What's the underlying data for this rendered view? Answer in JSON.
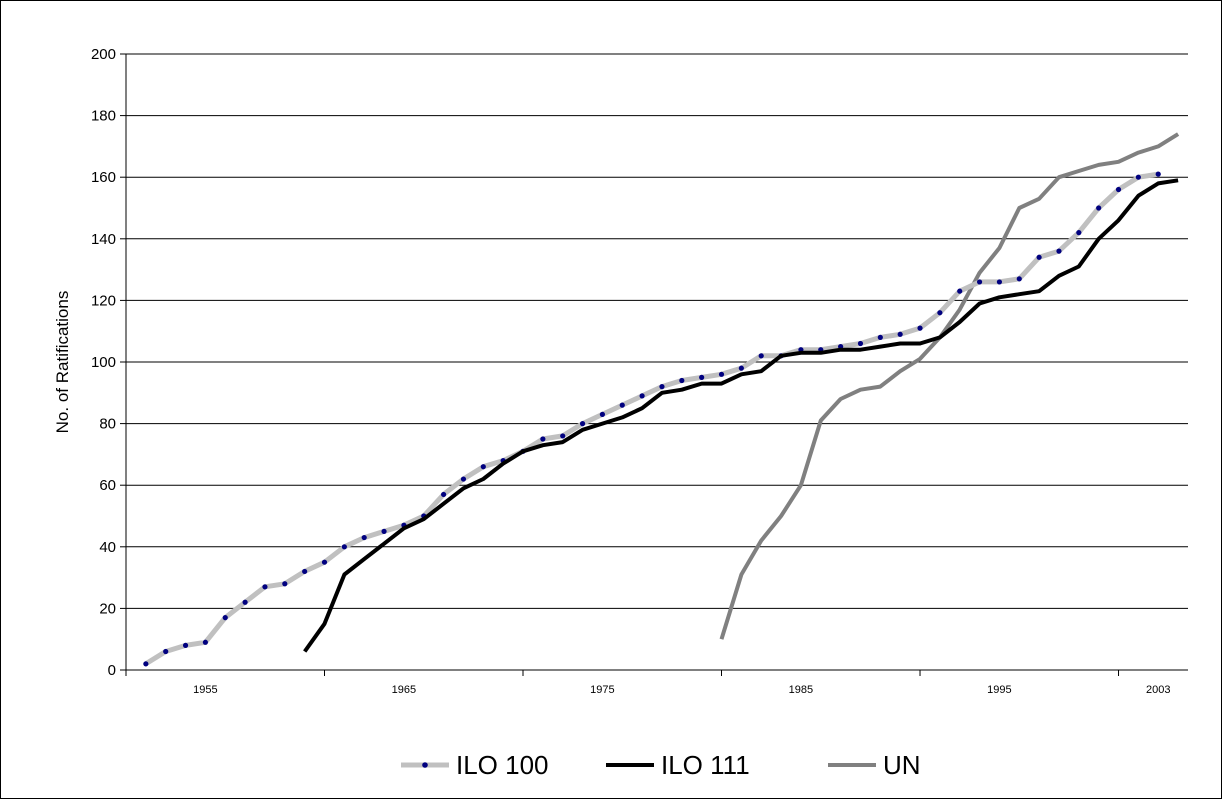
{
  "chart_data": {
    "type": "line",
    "title": "",
    "xlabel": "",
    "ylabel": "No. of Ratifications",
    "xlim": [
      1951,
      2004.5
    ],
    "ylim": [
      0,
      200
    ],
    "yticks": [
      0,
      20,
      40,
      60,
      80,
      100,
      120,
      140,
      160,
      180,
      200
    ],
    "xtick_labels": [
      "1955",
      "1965",
      "1975",
      "1985",
      "1995",
      "2003"
    ],
    "xtick_label_positions": [
      1955,
      1965,
      1975,
      1985,
      1995,
      2003
    ],
    "xtick_marks": [
      1951,
      1961,
      1971,
      1981,
      1991,
      2001
    ],
    "grid": "horizontal",
    "legend_position": "bottom",
    "series": [
      {
        "name": "ILO 100",
        "color": "#c0c0c0",
        "marker_color": "#000080",
        "markers": true,
        "x": [
          1952,
          1953,
          1954,
          1955,
          1956,
          1957,
          1958,
          1959,
          1960,
          1961,
          1962,
          1963,
          1964,
          1965,
          1966,
          1967,
          1968,
          1969,
          1970,
          1971,
          1972,
          1973,
          1974,
          1975,
          1976,
          1977,
          1978,
          1979,
          1980,
          1981,
          1982,
          1983,
          1984,
          1985,
          1986,
          1987,
          1988,
          1989,
          1990,
          1991,
          1992,
          1993,
          1994,
          1995,
          1996,
          1997,
          1998,
          1999,
          2000,
          2001,
          2002,
          2003
        ],
        "values": [
          2,
          6,
          8,
          9,
          17,
          22,
          27,
          28,
          32,
          35,
          40,
          43,
          45,
          47,
          50,
          57,
          62,
          66,
          68,
          71,
          75,
          76,
          80,
          83,
          86,
          89,
          92,
          94,
          95,
          96,
          98,
          102,
          102,
          104,
          104,
          105,
          106,
          108,
          109,
          111,
          116,
          123,
          126,
          126,
          127,
          134,
          136,
          142,
          150,
          156,
          160,
          161
        ]
      },
      {
        "name": "ILO 111",
        "color": "#000000",
        "markers": false,
        "x": [
          1960,
          1961,
          1962,
          1963,
          1964,
          1965,
          1966,
          1967,
          1968,
          1969,
          1970,
          1971,
          1972,
          1973,
          1974,
          1975,
          1976,
          1977,
          1978,
          1979,
          1980,
          1981,
          1982,
          1983,
          1984,
          1985,
          1986,
          1987,
          1988,
          1989,
          1990,
          1991,
          1992,
          1993,
          1994,
          1995,
          1996,
          1997,
          1998,
          1999,
          2000,
          2001,
          2002,
          2003,
          2004
        ],
        "values": [
          6,
          15,
          31,
          36,
          41,
          46,
          49,
          54,
          59,
          62,
          67,
          71,
          73,
          74,
          78,
          80,
          82,
          85,
          90,
          91,
          93,
          93,
          96,
          97,
          102,
          103,
          103,
          104,
          104,
          105,
          106,
          106,
          108,
          113,
          119,
          121,
          122,
          123,
          128,
          131,
          140,
          146,
          154,
          158,
          159
        ]
      },
      {
        "name": "UN",
        "color": "#808080",
        "markers": false,
        "x": [
          1981,
          1982,
          1983,
          1984,
          1985,
          1986,
          1987,
          1988,
          1989,
          1990,
          1991,
          1992,
          1993,
          1994,
          1995,
          1996,
          1997,
          1998,
          1999,
          2000,
          2001,
          2002,
          2003,
          2004
        ],
        "values": [
          10,
          31,
          42,
          50,
          60,
          81,
          88,
          91,
          92,
          97,
          101,
          108,
          117,
          129,
          137,
          150,
          153,
          160,
          162,
          164,
          165,
          168,
          170,
          174
        ]
      }
    ]
  }
}
